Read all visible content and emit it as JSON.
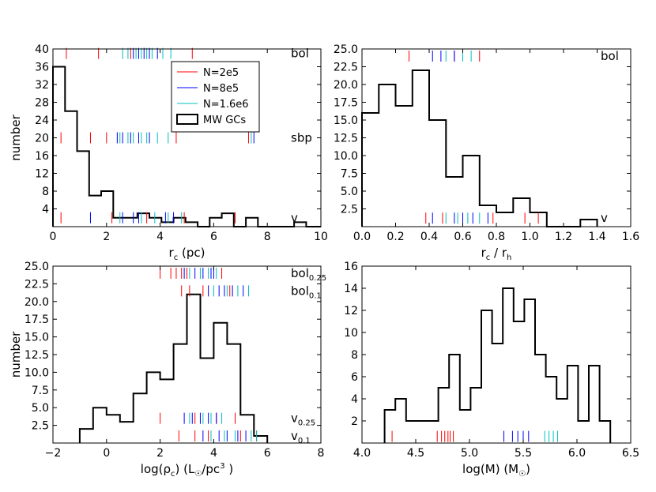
{
  "figure": {
    "n_panels": 4
  },
  "legend": {
    "entries": [
      {
        "label": "N=2e5",
        "color": "#ff0000",
        "kind": "line"
      },
      {
        "label": "N=8e5",
        "color": "#0000ff",
        "kind": "line"
      },
      {
        "label": "N=1.6e6",
        "color": "#00bfbf",
        "kind": "line"
      },
      {
        "label": "MW GCs",
        "color": "#000000",
        "kind": "box"
      }
    ]
  },
  "chart_data": [
    {
      "type": "histogram",
      "panel": "top-left",
      "xlabel_main": "r",
      "xlabel_sub": "c",
      "xlabel_tail": " (pc)",
      "ylabel": "number",
      "xlim": [
        0,
        10
      ],
      "ylim": [
        0,
        40
      ],
      "xticks": [
        0,
        2,
        4,
        6,
        8,
        10
      ],
      "xtick_labels": [
        "0",
        "2",
        "4",
        "6",
        "8",
        "10"
      ],
      "yticks": [
        4,
        8,
        12,
        16,
        20,
        24,
        28,
        32,
        36,
        40
      ],
      "ytick_labels": [
        "4",
        "8",
        "12",
        "16",
        "20",
        "24",
        "28",
        "32",
        "36",
        "40"
      ],
      "histogram": {
        "edges": [
          0,
          0.45,
          0.9,
          1.35,
          1.8,
          2.25,
          2.7,
          3.15,
          3.6,
          4.05,
          4.5,
          4.95,
          5.4,
          5.85,
          6.3,
          6.75,
          7.2,
          7.65,
          8.1,
          8.55,
          9.0,
          9.45,
          10.0
        ],
        "counts": [
          36,
          26,
          17,
          7,
          8,
          2,
          2,
          3,
          2,
          1,
          2,
          1,
          0,
          2,
          3,
          0,
          2,
          0,
          0,
          0,
          1,
          0
        ]
      },
      "tick_rows": [
        {
          "label": "bol",
          "y": 39,
          "values": {
            "N=2e5": [
              0.5,
              1.7,
              2.9,
              5.2
            ],
            "N=8e5": [
              3.0,
              3.2,
              3.4,
              3.6,
              3.9
            ],
            "N=1.6e6": [
              2.6,
              2.8,
              3.1,
              3.3,
              3.5,
              3.7,
              4.1,
              4.4
            ]
          }
        },
        {
          "label": "sbp",
          "y": 20,
          "values": {
            "N=2e5": [
              0.3,
              1.4,
              2.0,
              4.6,
              7.3
            ],
            "N=8e5": [
              2.4,
              2.6,
              2.9,
              3.2,
              3.6,
              7.5
            ],
            "N=1.6e6": [
              2.5,
              2.8,
              3.0,
              3.3,
              3.5,
              3.9,
              4.3,
              7.4
            ]
          }
        },
        {
          "label": "v",
          "y": 2,
          "values": {
            "N=2e5": [
              0.3,
              2.2,
              3.5,
              4.9,
              6.8
            ],
            "N=8e5": [
              1.4,
              2.6,
              3.0,
              3.2,
              4.2,
              4.5
            ],
            "N=1.6e6": [
              2.5,
              3.3,
              3.8,
              4.3,
              4.8
            ]
          }
        }
      ]
    },
    {
      "type": "histogram",
      "panel": "top-right",
      "xlabel_main": "r",
      "xlabel_sub": "c",
      "xlabel_tail": " / r",
      "xlabel_sub2": "h",
      "ylabel": "",
      "xlim": [
        0,
        1.6
      ],
      "ylim": [
        0,
        25
      ],
      "xticks": [
        0.0,
        0.2,
        0.4,
        0.6,
        0.8,
        1.0,
        1.2,
        1.4,
        1.6
      ],
      "xtick_labels": [
        "0.0",
        "0.2",
        "0.4",
        "0.6",
        "0.8",
        "1.0",
        "1.2",
        "1.4",
        "1.6"
      ],
      "yticks": [
        2.5,
        5.0,
        7.5,
        10.0,
        12.5,
        15.0,
        17.5,
        20.0,
        22.5,
        25.0
      ],
      "ytick_labels": [
        "2.5",
        "5.0",
        "7.5",
        "10.0",
        "12.5",
        "15.0",
        "17.5",
        "20.0",
        "22.5",
        "25.0"
      ],
      "histogram": {
        "edges": [
          0,
          0.1,
          0.2,
          0.3,
          0.4,
          0.5,
          0.6,
          0.7,
          0.8,
          0.9,
          1.0,
          1.1,
          1.2,
          1.3,
          1.4
        ],
        "counts": [
          16,
          20,
          17,
          22,
          15,
          7,
          10,
          3,
          2,
          4,
          2,
          0,
          0,
          1
        ]
      },
      "tick_rows": [
        {
          "label": "bol",
          "y": 24,
          "values": {
            "N=2e5": [
              0.28,
              0.55,
              0.7
            ],
            "N=8e5": [
              0.42,
              0.47,
              0.55,
              0.6
            ],
            "N=1.6e6": [
              0.5,
              0.6,
              0.65
            ]
          }
        },
        {
          "label": "v",
          "y": 1.2,
          "values": {
            "N=2e5": [
              0.38,
              0.48,
              0.78,
              0.97,
              1.05
            ],
            "N=8e5": [
              0.42,
              0.55,
              0.6,
              0.66,
              0.75
            ],
            "N=1.6e6": [
              0.5,
              0.57,
              0.63,
              0.7
            ]
          }
        }
      ]
    },
    {
      "type": "histogram",
      "panel": "bottom-left",
      "xlabel_main": "log(ρ",
      "xlabel_sub": "c",
      "xlabel_tail": ") (L",
      "xlabel_sub2": "☉",
      "xlabel_tail2": "/pc",
      "xlabel_sup": "3",
      "xlabel_tail3": " )",
      "ylabel": "number",
      "xlim": [
        -2,
        8
      ],
      "ylim": [
        0,
        25
      ],
      "xticks": [
        -2,
        0,
        2,
        4,
        6,
        8
      ],
      "xtick_labels": [
        "−2",
        "0",
        "2",
        "4",
        "6",
        "8"
      ],
      "yticks": [
        2.5,
        5.0,
        7.5,
        10.0,
        12.5,
        15.0,
        17.5,
        20.0,
        22.5,
        25.0
      ],
      "ytick_labels": [
        "2.5",
        "5.0",
        "7.5",
        "10.0",
        "12.5",
        "15.0",
        "17.5",
        "20.0",
        "22.5",
        "25.0"
      ],
      "histogram": {
        "edges": [
          -1.0,
          -0.5,
          0.0,
          0.5,
          1.0,
          1.5,
          2.0,
          2.5,
          3.0,
          3.5,
          4.0,
          4.5,
          5.0,
          5.5,
          6.0
        ],
        "counts": [
          2,
          5,
          4,
          3,
          7,
          10,
          9,
          14,
          21,
          12,
          17,
          14,
          4,
          1
        ]
      },
      "tick_rows": [
        {
          "label": "bol",
          "label_sub": "0.25",
          "y": 24,
          "values": {
            "N=2e5": [
              2.0,
              2.4,
              2.6,
              2.8,
              3.0,
              4.3
            ],
            "N=8e5": [
              2.9,
              3.3,
              3.6,
              3.9,
              4.0
            ],
            "N=1.6e6": [
              3.1,
              3.5,
              3.8,
              4.1
            ]
          }
        },
        {
          "label": "bol",
          "label_sub": "0.1",
          "y": 21.5,
          "values": {
            "N=2e5": [
              2.8,
              3.1,
              3.6,
              4.6
            ],
            "N=8e5": [
              3.8,
              4.2,
              4.4,
              4.7,
              5.1
            ],
            "N=1.6e6": [
              4.0,
              4.5,
              4.9,
              5.3
            ]
          }
        },
        {
          "label": "v",
          "label_sub": "0.25",
          "y": 3.5,
          "values": {
            "N=2e5": [
              2.0,
              3.3,
              4.1,
              4.8
            ],
            "N=8e5": [
              2.9,
              3.2,
              3.5,
              3.8,
              4.1
            ],
            "N=1.6e6": [
              3.1,
              3.6,
              3.9,
              4.3
            ]
          }
        },
        {
          "label": "v",
          "label_sub": "0.1",
          "y": 1,
          "values": {
            "N=2e5": [
              2.7,
              3.3,
              3.8,
              5.0,
              5.6
            ],
            "N=8e5": [
              3.6,
              4.2,
              4.5,
              4.9,
              5.2
            ],
            "N=1.6e6": [
              3.9,
              4.4,
              4.8,
              5.4,
              5.6
            ]
          }
        }
      ]
    },
    {
      "type": "histogram",
      "panel": "bottom-right",
      "xlabel_main": "log(M) (M",
      "xlabel_sub": "☉",
      "xlabel_tail": ")",
      "ylabel": "",
      "xlim": [
        4.0,
        6.5
      ],
      "ylim": [
        0,
        16
      ],
      "xticks": [
        4.0,
        4.5,
        5.0,
        5.5,
        6.0,
        6.5
      ],
      "xtick_labels": [
        "4.0",
        "4.5",
        "5.0",
        "5.5",
        "6.0",
        "6.5"
      ],
      "yticks": [
        2,
        4,
        6,
        8,
        10,
        12,
        14,
        16
      ],
      "ytick_labels": [
        "2",
        "4",
        "6",
        "8",
        "10",
        "12",
        "14",
        "16"
      ],
      "histogram": {
        "edges": [
          4.21,
          4.31,
          4.41,
          4.51,
          4.61,
          4.71,
          4.81,
          4.91,
          5.01,
          5.11,
          5.21,
          5.31,
          5.41,
          5.51,
          5.61,
          5.71,
          5.81,
          5.91,
          6.01,
          6.11,
          6.21,
          6.31
        ],
        "counts": [
          3,
          4,
          2,
          2,
          2,
          5,
          8,
          3,
          5,
          12,
          9,
          14,
          11,
          13,
          8,
          6,
          4,
          7,
          2,
          7,
          2
        ]
      },
      "tick_rows": [
        {
          "label": "",
          "y": 0.6,
          "values": {
            "N=2e5": [
              4.28,
              4.7,
              4.74,
              4.77,
              4.8,
              4.82,
              4.85
            ],
            "N=8e5": [
              5.32,
              5.4,
              5.45,
              5.5,
              5.55
            ],
            "N=1.6e6": [
              5.7,
              5.74,
              5.78,
              5.82
            ]
          }
        }
      ]
    }
  ]
}
